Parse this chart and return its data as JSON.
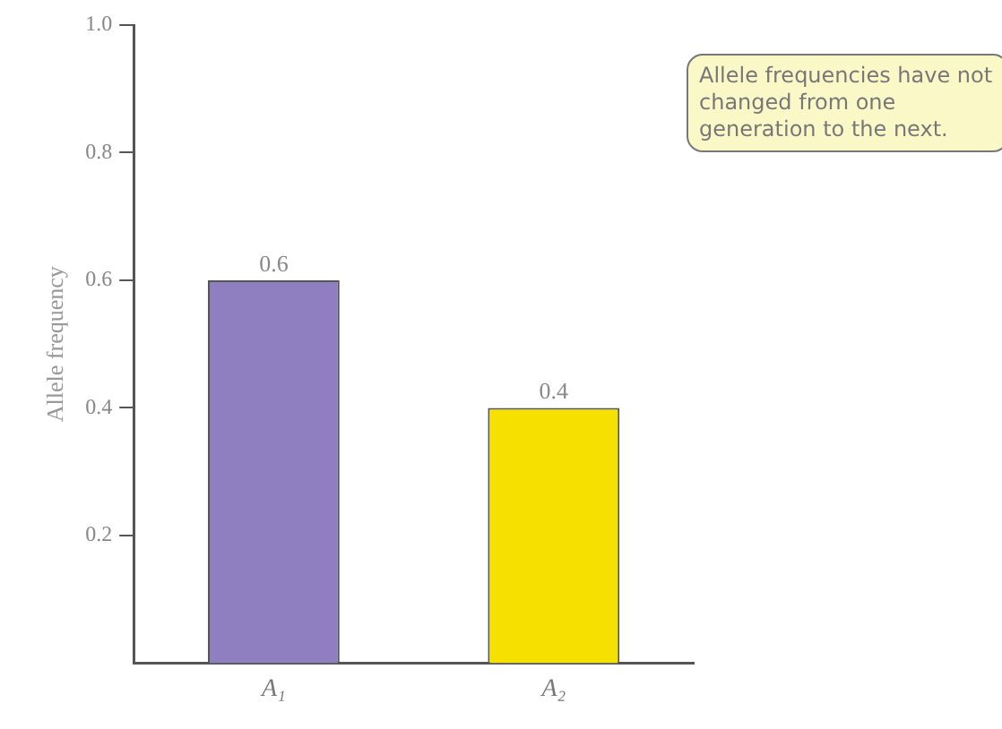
{
  "chart_data": {
    "type": "bar",
    "categories": [
      "A₁",
      "A₂"
    ],
    "values": [
      0.6,
      0.4
    ],
    "colors": [
      "#8f7fc0",
      "#f5e000"
    ],
    "ylabel": "Allele frequency",
    "ylim": [
      0,
      1
    ],
    "yticks": [
      0.2,
      0.4,
      0.6,
      0.8,
      {
        "value": 1,
        "label": "1.0"
      }
    ],
    "data_labels": true,
    "grid": false,
    "legend": false,
    "annotations": [
      "Allele frequencies have not changed from one generation to the next."
    ]
  }
}
